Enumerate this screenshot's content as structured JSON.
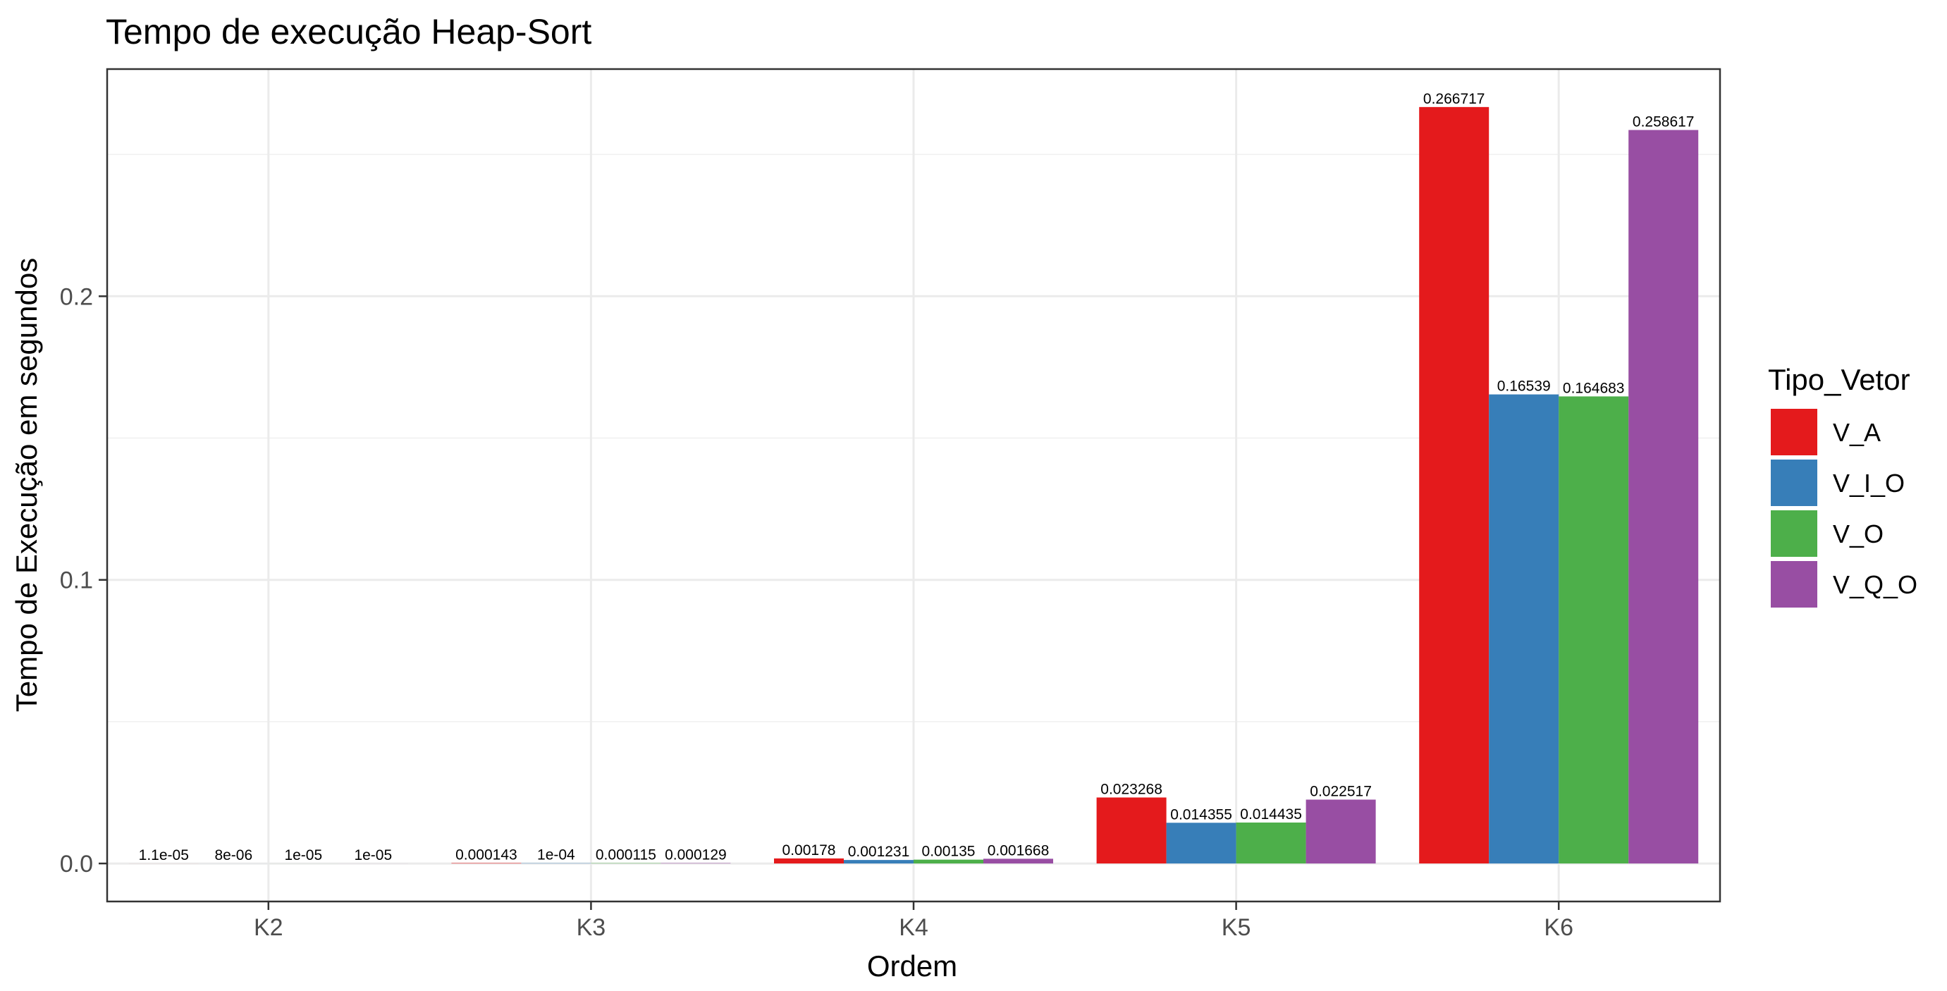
{
  "chart_data": {
    "type": "bar",
    "title": "Tempo de execução Heap-Sort",
    "xlabel": "Ordem",
    "ylabel": "Tempo de Execução em segundos",
    "categories": [
      "K2",
      "K3",
      "K4",
      "K5",
      "K6"
    ],
    "series": [
      {
        "name": "V_A",
        "color": "#e41a1c",
        "values": [
          1.1e-05,
          0.000143,
          0.00178,
          0.023268,
          0.266717
        ],
        "labels": [
          "1.1e-05",
          "0.000143",
          "0.00178",
          "0.023268",
          "0.266717"
        ]
      },
      {
        "name": "V_I_O",
        "color": "#377eb8",
        "values": [
          8e-06,
          0.0001,
          0.001231,
          0.014355,
          0.16539
        ],
        "labels": [
          "8e-06",
          "1e-04",
          "0.001231",
          "0.014355",
          "0.16539"
        ]
      },
      {
        "name": "V_O",
        "color": "#4daf4a",
        "values": [
          1e-05,
          0.000115,
          0.00135,
          0.014435,
          0.164683
        ],
        "labels": [
          "1e-05",
          "0.000115",
          "0.00135",
          "0.014435",
          "0.164683"
        ]
      },
      {
        "name": "V_Q_O",
        "color": "#984ea3",
        "values": [
          1e-05,
          0.000129,
          0.001668,
          0.022517,
          0.258617
        ],
        "labels": [
          "1e-05",
          "0.000129",
          "0.001668",
          "0.022517",
          "0.258617"
        ]
      }
    ],
    "yticks": [
      0.0,
      0.1,
      0.2
    ],
    "ytick_labels": [
      "0.0",
      "0.1",
      "0.2"
    ],
    "ylim": [
      -0.0134,
      0.2801
    ],
    "grid": true,
    "legend": {
      "title": "Tipo_Vetor",
      "position": "right"
    }
  }
}
